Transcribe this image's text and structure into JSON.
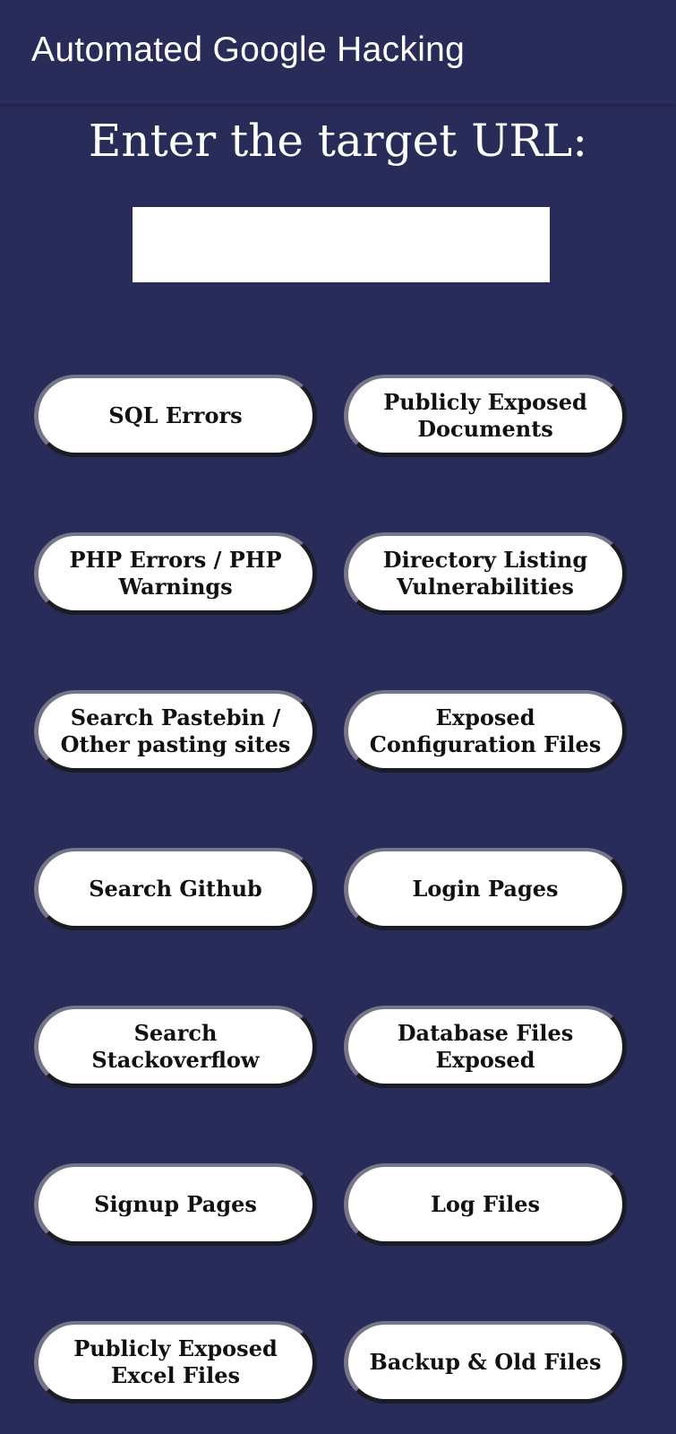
{
  "appbar": {
    "title": "Automated Google Hacking"
  },
  "main": {
    "prompt": "Enter the target URL:",
    "url_input": {
      "value": "",
      "placeholder": ""
    },
    "buttons": [
      {
        "label": "SQL Errors"
      },
      {
        "label": "Publicly Exposed\nDocuments"
      },
      {
        "label": "PHP Errors / PHP\nWarnings"
      },
      {
        "label": "Directory Listing\nVulnerabilities"
      },
      {
        "label": "Search Pastebin /\nOther pasting sites"
      },
      {
        "label": "Exposed\nConfiguration Files"
      },
      {
        "label": "Search Github"
      },
      {
        "label": "Login Pages"
      },
      {
        "label": "Search Stackoverflow"
      },
      {
        "label": "Database Files\nExposed"
      },
      {
        "label": "Signup Pages"
      },
      {
        "label": "Log Files"
      },
      {
        "label": "Publicly Exposed\nExcel Files"
      },
      {
        "label": "Backup & Old Files"
      }
    ]
  },
  "colors": {
    "background": "#292c58",
    "button_fill": "#ffffff",
    "text_light": "#ffffff",
    "text_dark": "#111111"
  }
}
